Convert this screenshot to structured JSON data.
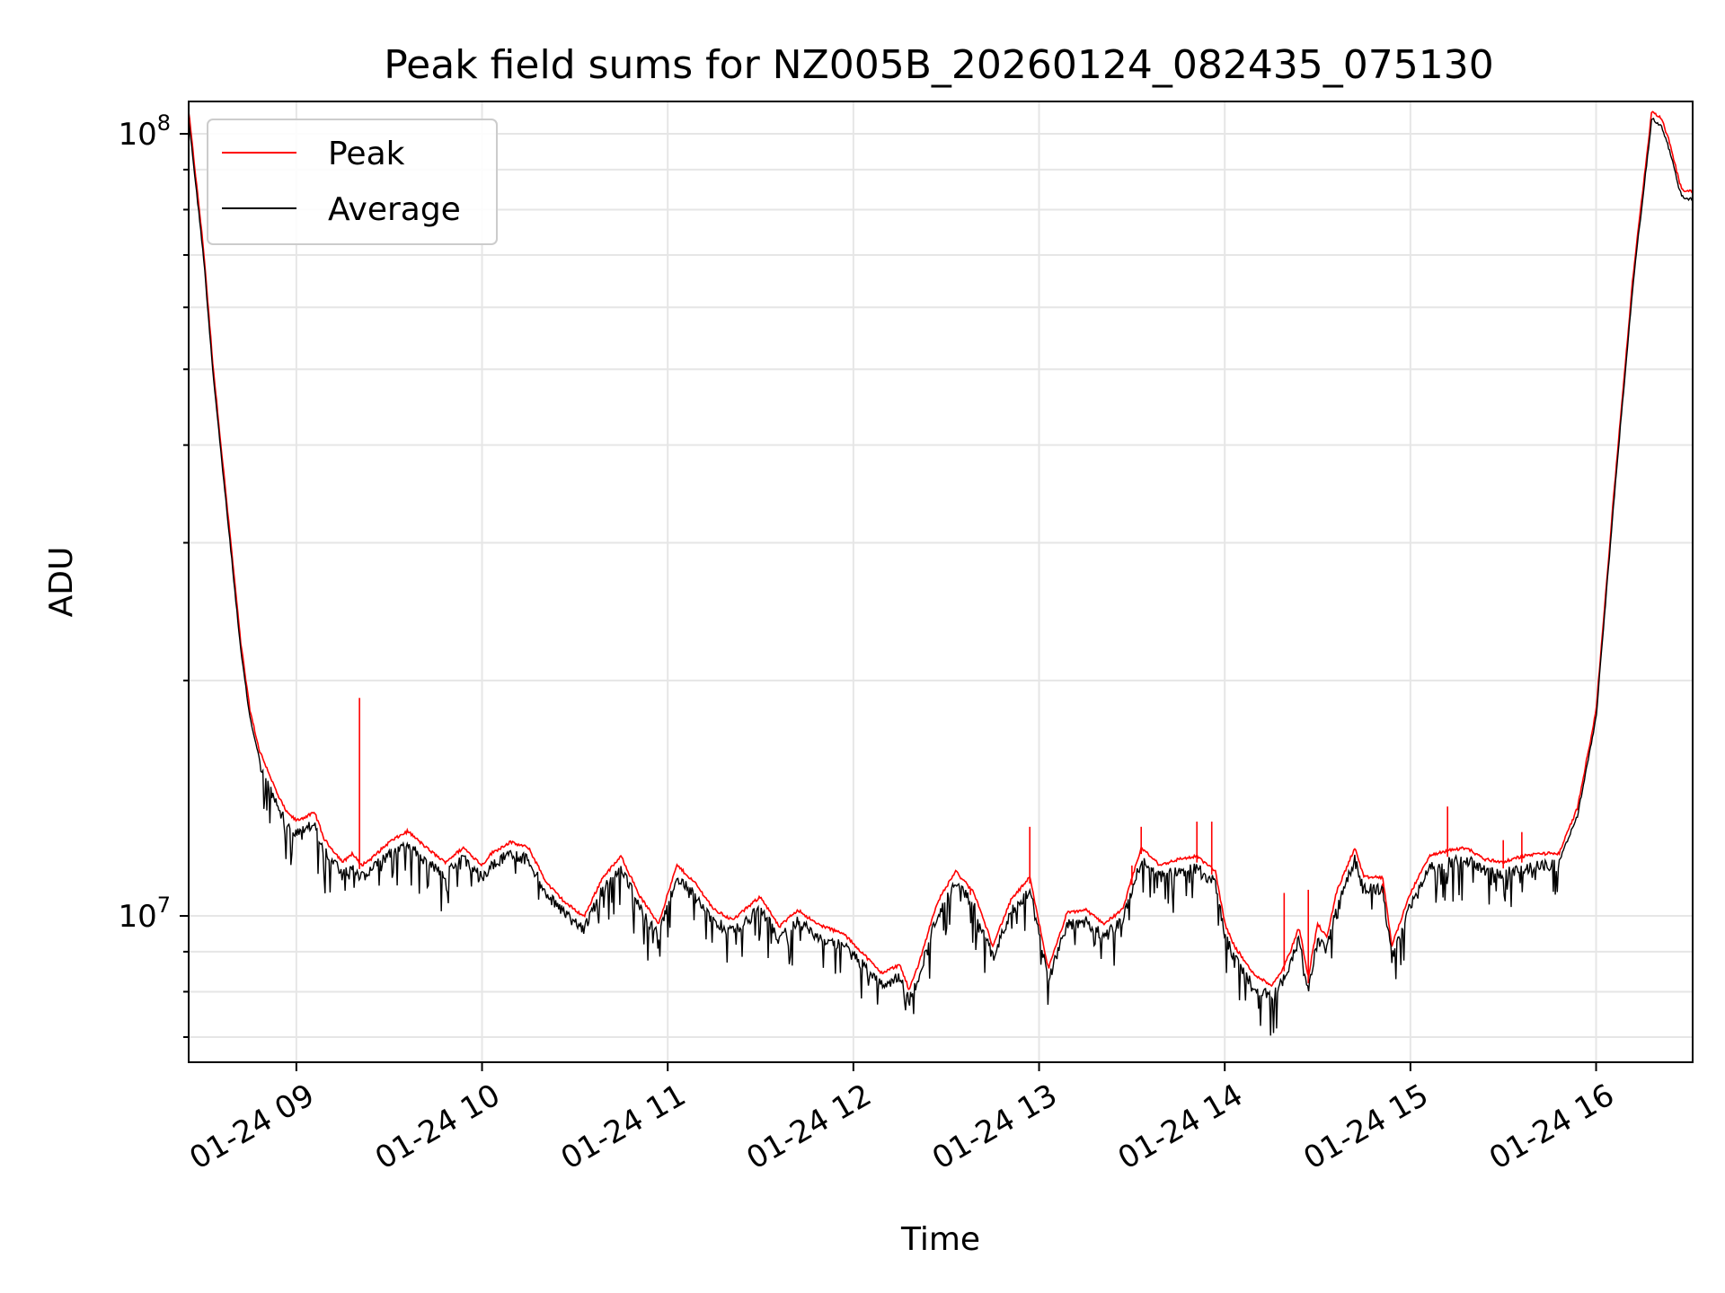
{
  "chart_data": {
    "type": "line",
    "title": "Peak field sums for NZ005B_20260124_082435_075130",
    "xlabel": "Time",
    "ylabel": "ADU",
    "yscale": "log",
    "xlim_hours": [
      8.42,
      16.52
    ],
    "ylim": [
      6500000.0,
      110000000.0
    ],
    "x_tick_labels": [
      "01-24 09",
      "01-24 10",
      "01-24 11",
      "01-24 12",
      "01-24 13",
      "01-24 14",
      "01-24 15",
      "01-24 16"
    ],
    "x_tick_hours": [
      9,
      10,
      11,
      12,
      13,
      14,
      15,
      16
    ],
    "y_tick_labels": [
      {
        "base": "10",
        "exp": "7"
      },
      {
        "base": "10",
        "exp": "8"
      }
    ],
    "y_major_values": [
      10000000.0,
      100000000.0
    ],
    "grid": true,
    "legend_position": "top-left",
    "series": [
      {
        "name": "Peak",
        "color": "#ff0000"
      },
      {
        "name": "Average",
        "color": "#000000"
      }
    ],
    "average_anchor_points": {
      "hours": [
        8.42,
        8.5,
        8.55,
        8.6,
        8.65,
        8.7,
        8.75,
        8.8,
        8.85,
        8.9,
        8.95,
        9.0,
        9.1,
        9.15,
        9.25,
        9.3,
        9.35,
        9.4,
        9.5,
        9.6,
        9.7,
        9.8,
        9.9,
        10.0,
        10.05,
        10.15,
        10.25,
        10.35,
        10.45,
        10.55,
        10.65,
        10.75,
        10.85,
        10.95,
        11.05,
        11.15,
        11.25,
        11.35,
        11.5,
        11.6,
        11.7,
        11.8,
        11.95,
        12.05,
        12.15,
        12.25,
        12.3,
        12.35,
        12.45,
        12.55,
        12.65,
        12.75,
        12.85,
        12.95,
        13.05,
        13.15,
        13.25,
        13.35,
        13.45,
        13.55,
        13.65,
        13.75,
        13.85,
        13.95,
        14.0,
        14.05,
        14.15,
        14.25,
        14.3,
        14.35,
        14.4,
        14.45,
        14.5,
        14.55,
        14.6,
        14.7,
        14.75,
        14.85,
        14.9,
        15.0,
        15.1,
        15.2,
        15.3,
        15.4,
        15.5,
        15.6,
        15.7,
        15.8,
        15.9,
        16.0,
        16.1,
        16.2,
        16.3,
        16.35,
        16.4,
        16.45,
        16.47,
        16.52
      ],
      "values": [
        105000000.0,
        70000000.0,
        50000000.0,
        38000000.0,
        29000000.0,
        22000000.0,
        18000000.0,
        16000000.0,
        15000000.0,
        14000000.0,
        13300000.0,
        13000000.0,
        13300000.0,
        12300000.0,
        11500000.0,
        11800000.0,
        11400000.0,
        11600000.0,
        12200000.0,
        12600000.0,
        12000000.0,
        11500000.0,
        12000000.0,
        11400000.0,
        11800000.0,
        12200000.0,
        12000000.0,
        10800000.0,
        10200000.0,
        9800000.0,
        11000000.0,
        11700000.0,
        10400000.0,
        9600000.0,
        11400000.0,
        10800000.0,
        10000000.0,
        9700000.0,
        10400000.0,
        9500000.0,
        10000000.0,
        9600000.0,
        9300000.0,
        8800000.0,
        8300000.0,
        8500000.0,
        7900000.0,
        8500000.0,
        10200000.0,
        11200000.0,
        10500000.0,
        9000000.0,
        10300000.0,
        11000000.0,
        8400000.0,
        9900000.0,
        10000000.0,
        9600000.0,
        10000000.0,
        12000000.0,
        11400000.0,
        11600000.0,
        11700000.0,
        11200000.0,
        9600000.0,
        9000000.0,
        8300000.0,
        8000000.0,
        8300000.0,
        8800000.0,
        9500000.0,
        8200000.0,
        9600000.0,
        9200000.0,
        10500000.0,
        12000000.0,
        11000000.0,
        11000000.0,
        9000000.0,
        10500000.0,
        11700000.0,
        11900000.0,
        12000000.0,
        11600000.0,
        11500000.0,
        11700000.0,
        11800000.0,
        11800000.0,
        13500000.0,
        18000000.0,
        35000000.0,
        65000000.0,
        105000000.0,
        103000000.0,
        95000000.0,
        85000000.0,
        83000000.0,
        83000000.0
      ]
    },
    "peak_spikes": [
      {
        "hour": 9.34,
        "value": 19000000.0
      },
      {
        "hour": 12.63,
        "value": 10800000.0
      },
      {
        "hour": 12.95,
        "value": 13000000.0
      },
      {
        "hour": 13.5,
        "value": 11600000.0
      },
      {
        "hour": 13.55,
        "value": 13000000.0
      },
      {
        "hour": 13.85,
        "value": 13200000.0
      },
      {
        "hour": 13.93,
        "value": 13200000.0
      },
      {
        "hour": 14.32,
        "value": 10700000.0
      },
      {
        "hour": 14.45,
        "value": 10800000.0
      },
      {
        "hour": 14.85,
        "value": 10700000.0
      },
      {
        "hour": 15.2,
        "value": 13800000.0
      },
      {
        "hour": 15.5,
        "value": 12500000.0
      },
      {
        "hour": 15.6,
        "value": 12800000.0
      }
    ]
  }
}
